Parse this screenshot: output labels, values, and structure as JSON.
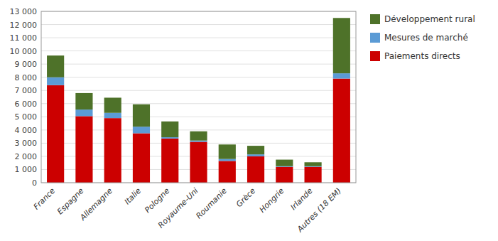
{
  "chart_data": {
    "type": "bar",
    "stacked": true,
    "categories": [
      "France",
      "Espagne",
      "Allemagne",
      "Italie",
      "Pologne",
      "Royaume-Uni",
      "Roumanie",
      "Grèce",
      "Hongrie",
      "Irlande",
      "Autres (18 EM)"
    ],
    "series": [
      {
        "name": "Paiements directs",
        "color": "#CC0000",
        "values": [
          7400,
          5050,
          4900,
          3750,
          3350,
          3100,
          1650,
          2000,
          1200,
          1200,
          7900
        ]
      },
      {
        "name": "Mesures de marché",
        "color": "#5B9BD5",
        "values": [
          600,
          500,
          400,
          500,
          100,
          100,
          150,
          150,
          50,
          50,
          400
        ]
      },
      {
        "name": "Développement rural",
        "color": "#4E7229",
        "values": [
          1650,
          1250,
          1150,
          1700,
          1200,
          700,
          1100,
          650,
          500,
          300,
          4200
        ]
      }
    ],
    "ylim": [
      0,
      13000
    ],
    "yticks": [
      0,
      {
        "value": 1000,
        "label": "1 000"
      },
      {
        "value": 2000,
        "label": "2 000"
      },
      {
        "value": 3000,
        "label": "3 000"
      },
      {
        "value": 4000,
        "label": "4 000"
      },
      {
        "value": 5000,
        "label": "5 000"
      },
      {
        "value": 6000,
        "label": "6 000"
      },
      {
        "value": 7000,
        "label": "7 000"
      },
      {
        "value": 8000,
        "label": "8 000"
      },
      {
        "value": 9000,
        "label": "9 000"
      },
      {
        "value": 10000,
        "label": "10 000"
      },
      {
        "value": 11000,
        "label": "11 000"
      },
      {
        "value": 12000,
        "label": "12 000"
      },
      {
        "value": 13000,
        "label": "13 000"
      }
    ],
    "grid": true,
    "legend": "right"
  }
}
